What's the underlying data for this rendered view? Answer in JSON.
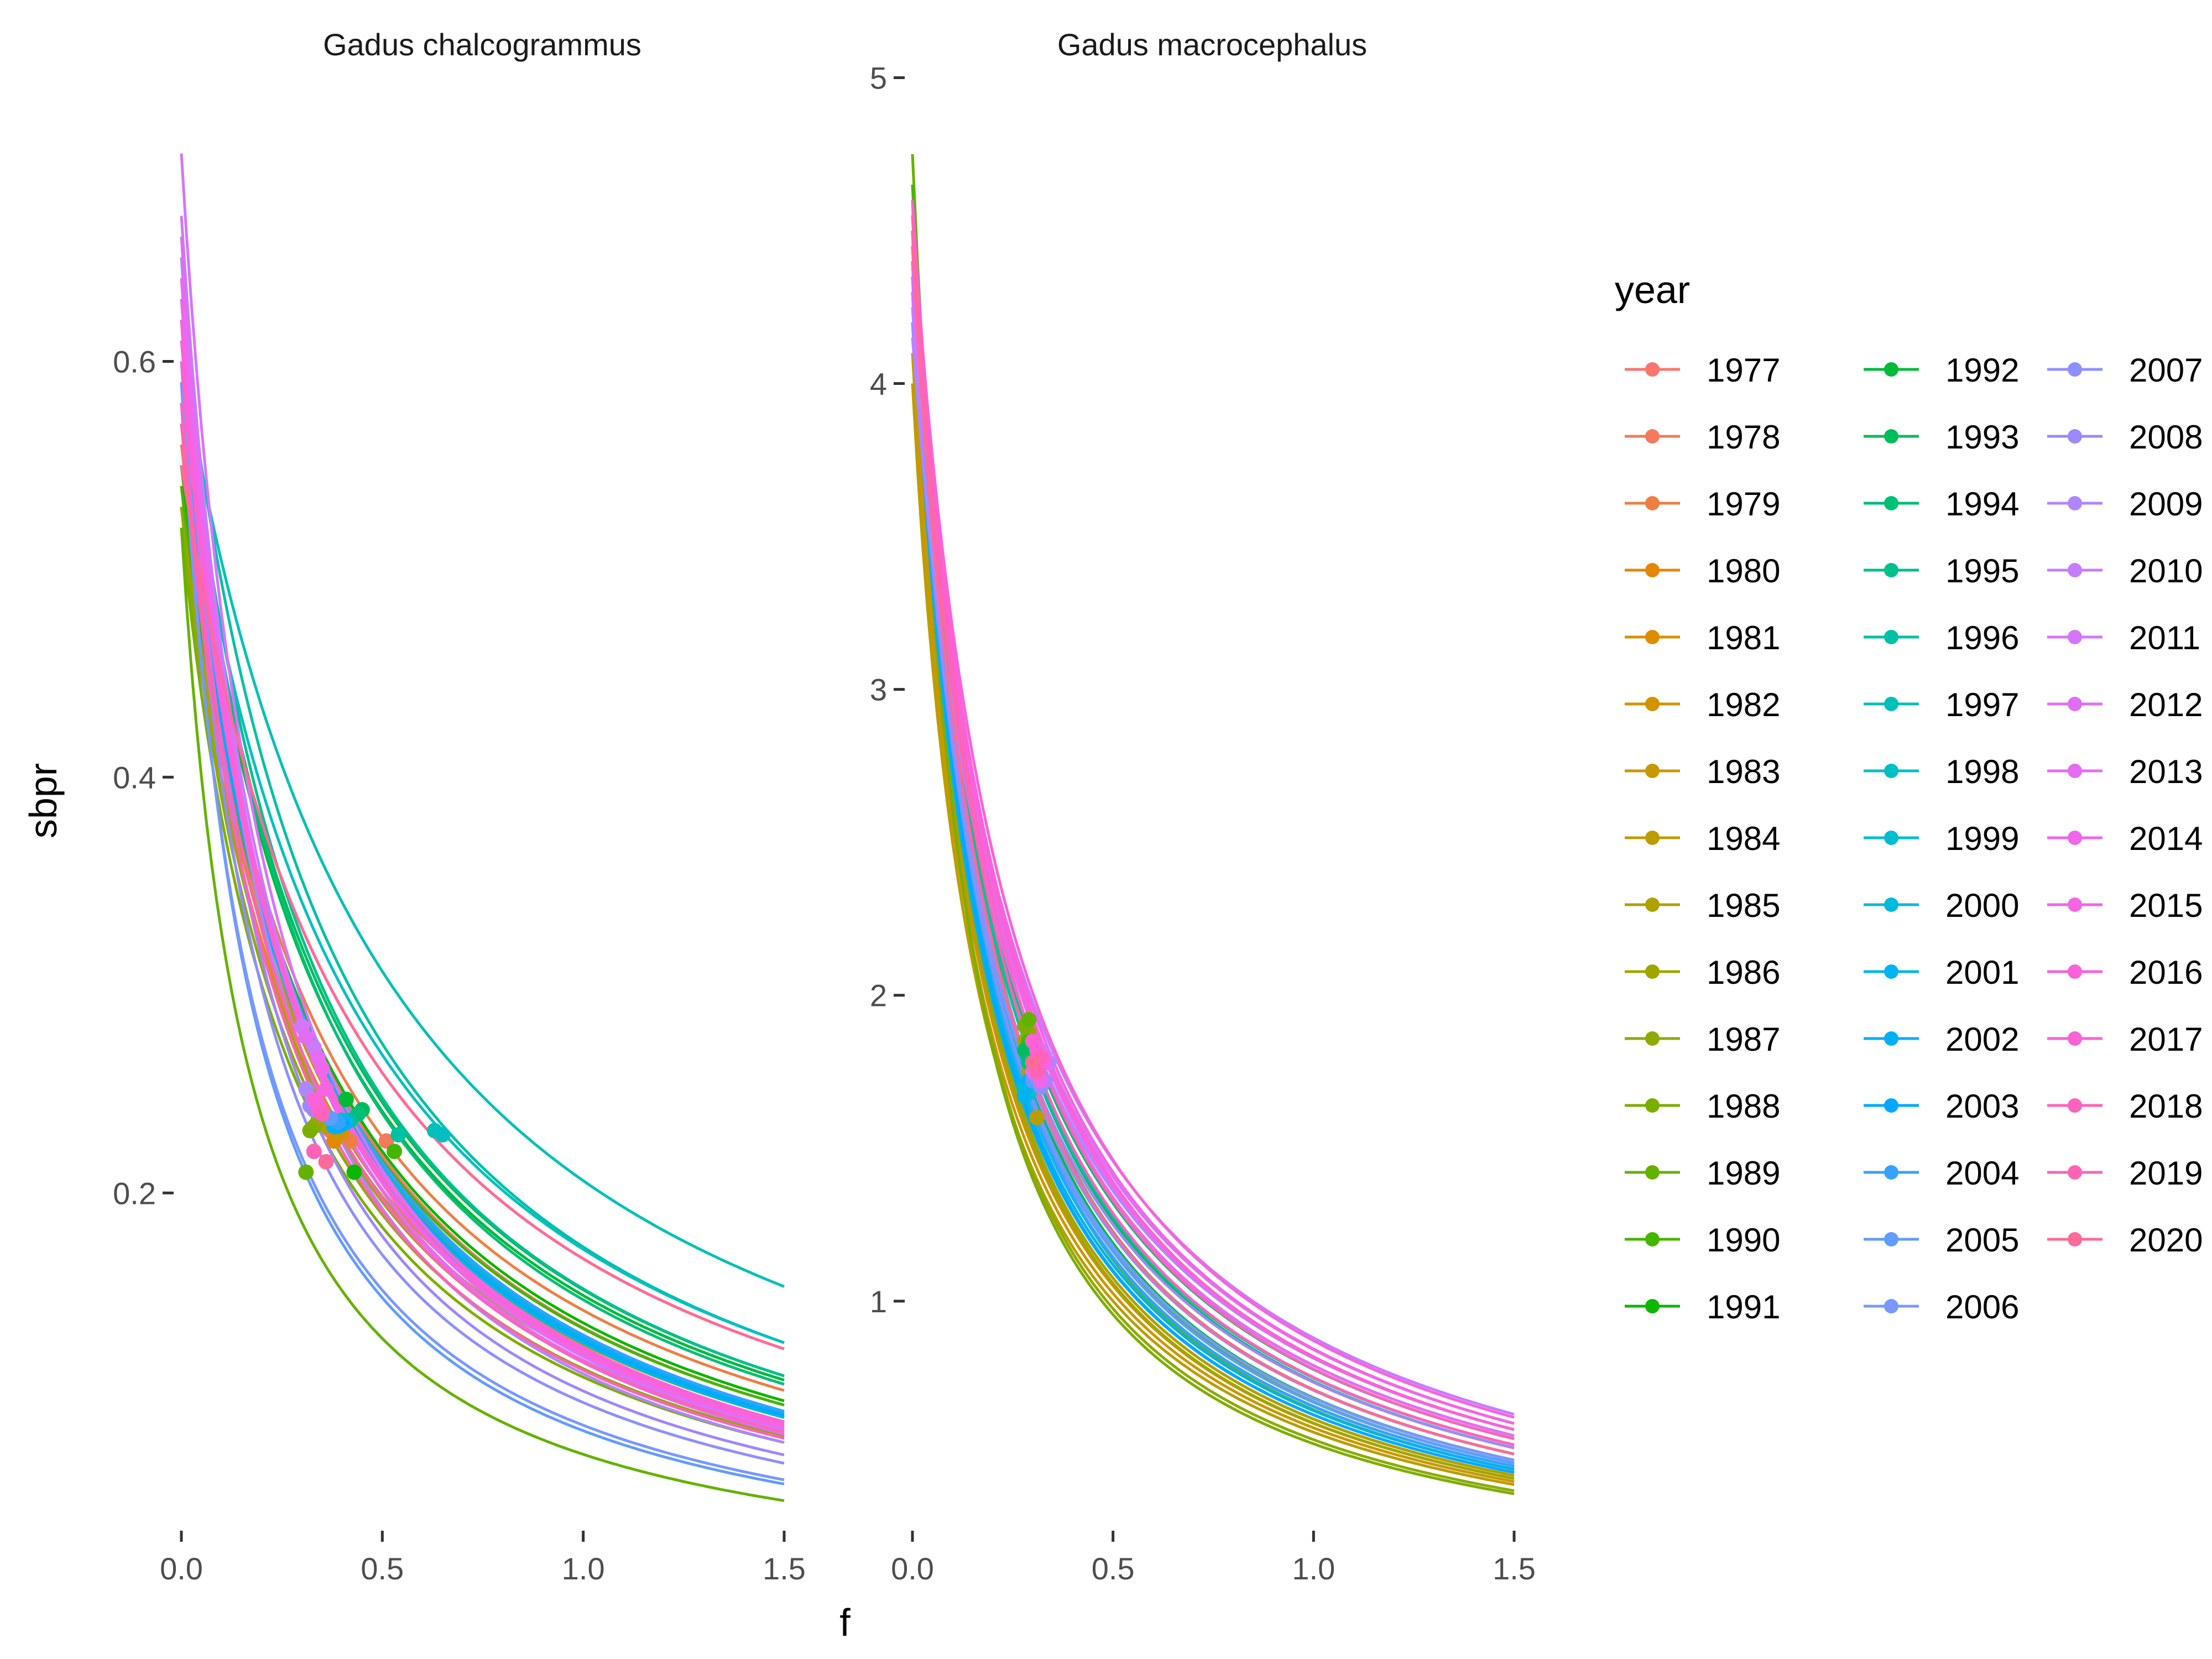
{
  "chart_data": {
    "type": "line",
    "xlabel": "f",
    "ylabel": "sbpr",
    "legend": {
      "title": "year",
      "position": "right",
      "columns": 3
    },
    "years": [
      1977,
      1978,
      1979,
      1980,
      1981,
      1982,
      1983,
      1984,
      1985,
      1986,
      1987,
      1988,
      1989,
      1990,
      1991,
      1992,
      1993,
      1994,
      1995,
      1996,
      1997,
      1998,
      1999,
      2000,
      2001,
      2002,
      2003,
      2004,
      2005,
      2006,
      2007,
      2008,
      2009,
      2010,
      2011,
      2012,
      2013,
      2014,
      2015,
      2016,
      2017,
      2018,
      2019,
      2020
    ],
    "colors": [
      "#F8766D",
      "#F47A5B",
      "#EE7F44",
      "#E58700",
      "#DD8D00",
      "#D39200",
      "#C99800",
      "#BC9D00",
      "#AFA100",
      "#A0A600",
      "#8FAA00",
      "#7CAE00",
      "#64B200",
      "#45B600",
      "#0CB702",
      "#00BA38",
      "#00BD5C",
      "#00BF77",
      "#00C08D",
      "#00C1A3",
      "#00C0B8",
      "#00BFC4",
      "#00BDD0",
      "#00BADE",
      "#00B4EF",
      "#00B0F6",
      "#00A9FF",
      "#35A2FF",
      "#619CFF",
      "#7997FF",
      "#8D8FFF",
      "#9E87FF",
      "#AE87FF",
      "#C77CFF",
      "#D575FE",
      "#E06DF3",
      "#E76BF3",
      "#F066EA",
      "#F564E3",
      "#FA62DB",
      "#FC61D5",
      "#FF62BC",
      "#FF63B6",
      "#FF6A98"
    ],
    "x_ticks": [
      0.0,
      0.5,
      1.0,
      1.5
    ],
    "x_tick_labels": [
      "0.0",
      "0.5",
      "1.0",
      "1.5"
    ],
    "xlim": [
      0,
      1.5
    ],
    "panels": [
      {
        "title": "Gadus chalcogrammus",
        "ylim": [
          0.045,
          0.71
        ],
        "y_ticks": [
          0.2,
          0.4,
          0.6
        ],
        "y_tick_labels": [
          "0.2",
          "0.4",
          "0.6"
        ],
        "sbpr0": [
          0.56,
          0.55,
          0.54,
          0.55,
          0.54,
          0.53,
          0.54,
          0.55,
          0.53,
          0.54,
          0.53,
          0.52,
          0.52,
          0.54,
          0.55,
          0.58,
          0.59,
          0.6,
          0.61,
          0.62,
          0.6,
          0.58,
          0.57,
          0.57,
          0.58,
          0.58,
          0.57,
          0.58,
          0.59,
          0.58,
          0.6,
          0.62,
          0.65,
          0.67,
          0.7,
          0.66,
          0.64,
          0.63,
          0.62,
          0.61,
          0.6,
          0.58,
          0.57,
          0.55
        ],
        "f_point": [
          0.37,
          0.51,
          0.42,
          0.38,
          0.4,
          0.39,
          0.38,
          0.37,
          0.36,
          0.34,
          0.33,
          0.32,
          0.31,
          0.53,
          0.43,
          0.41,
          0.45,
          0.44,
          0.42,
          0.54,
          0.63,
          0.65,
          0.4,
          0.39,
          0.41,
          0.38,
          0.4,
          0.39,
          0.37,
          0.35,
          0.33,
          0.32,
          0.31,
          0.33,
          0.3,
          0.31,
          0.34,
          0.35,
          0.36,
          0.33,
          0.34,
          0.35,
          0.33,
          0.36
        ],
        "sbpr_point": [
          0.23,
          0.225,
          0.225,
          0.225,
          0.23,
          0.228,
          0.232,
          0.235,
          0.232,
          0.235,
          0.232,
          0.23,
          0.21,
          0.22,
          0.21,
          0.245,
          0.24,
          0.238,
          0.235,
          0.228,
          0.23,
          0.228,
          0.235,
          0.232,
          0.234,
          0.232,
          0.233,
          0.234,
          0.236,
          0.238,
          0.24,
          0.242,
          0.25,
          0.27,
          0.28,
          0.275,
          0.265,
          0.26,
          0.25,
          0.245,
          0.24,
          0.238,
          0.22,
          0.215
        ],
        "sbpr_at_1_5": [
          0.098,
          0.125,
          0.105,
          0.095,
          0.093,
          0.09,
          0.092,
          0.094,
          0.088,
          0.086,
          0.083,
          0.08,
          0.052,
          0.098,
          0.1,
          0.11,
          0.112,
          0.108,
          0.112,
          0.128,
          0.155,
          0.128,
          0.095,
          0.092,
          0.094,
          0.09,
          0.093,
          0.095,
          0.06,
          0.062,
          0.07,
          0.074,
          0.08,
          0.086,
          0.088,
          0.084,
          0.085,
          0.087,
          0.088,
          0.09,
          0.089,
          0.085,
          0.082,
          0.125
        ]
      },
      {
        "title": "Gadus macrocephalus",
        "ylim": [
          0.3,
          4.82
        ],
        "y_ticks": [
          1,
          2,
          3,
          4,
          5
        ],
        "y_tick_labels": [
          "1",
          "2",
          "3",
          "4",
          "5"
        ],
        "sbpr0": [
          4.45,
          4.4,
          4.35,
          4.3,
          4.3,
          4.2,
          4.1,
          4.0,
          4.3,
          4.4,
          4.5,
          4.6,
          4.75,
          4.65,
          4.55,
          4.5,
          4.45,
          4.4,
          4.35,
          4.3,
          4.35,
          4.4,
          4.4,
          4.35,
          4.3,
          4.35,
          4.4,
          4.45,
          4.4,
          4.3,
          4.25,
          4.2,
          4.15,
          4.25,
          4.3,
          4.35,
          4.4,
          4.45,
          4.5,
          4.55,
          4.6,
          4.55,
          4.5,
          4.45
        ],
        "f_point": [
          0.29,
          0.3,
          0.31,
          0.29,
          0.3,
          0.29,
          0.3,
          0.31,
          0.29,
          0.28,
          0.29,
          0.28,
          0.29,
          0.29,
          0.3,
          0.29,
          0.28,
          0.29,
          0.3,
          0.31,
          0.29,
          0.28,
          0.29,
          0.28,
          0.28,
          0.29,
          0.3,
          0.31,
          0.3,
          0.31,
          0.32,
          0.33,
          0.34,
          0.32,
          0.33,
          0.31,
          0.3,
          0.32,
          0.33,
          0.31,
          0.3,
          0.32,
          0.31,
          0.3
        ],
        "sbpr_point": [
          1.75,
          1.72,
          1.7,
          1.8,
          1.75,
          1.78,
          1.7,
          1.6,
          1.75,
          1.85,
          1.88,
          1.9,
          1.92,
          1.85,
          1.85,
          1.8,
          1.82,
          1.78,
          1.75,
          1.72,
          1.7,
          1.68,
          1.68,
          1.7,
          1.67,
          1.72,
          1.74,
          1.75,
          1.72,
          1.73,
          1.7,
          1.72,
          1.78,
          1.82,
          1.8,
          1.76,
          1.75,
          1.72,
          1.78,
          1.82,
          1.85,
          1.8,
          1.75,
          1.78
        ],
        "sbpr_at_1_5": [
          0.48,
          0.46,
          0.45,
          0.43,
          0.44,
          0.42,
          0.41,
          0.4,
          0.43,
          0.42,
          0.38,
          0.37,
          0.45,
          0.47,
          0.48,
          0.5,
          0.52,
          0.55,
          0.56,
          0.53,
          0.5,
          0.48,
          0.47,
          0.46,
          0.44,
          0.45,
          0.44,
          0.46,
          0.47,
          0.48,
          0.5,
          0.52,
          0.58,
          0.63,
          0.6,
          0.58,
          0.56,
          0.58,
          0.6,
          0.62,
          0.58,
          0.55,
          0.53,
          0.5
        ]
      }
    ]
  }
}
